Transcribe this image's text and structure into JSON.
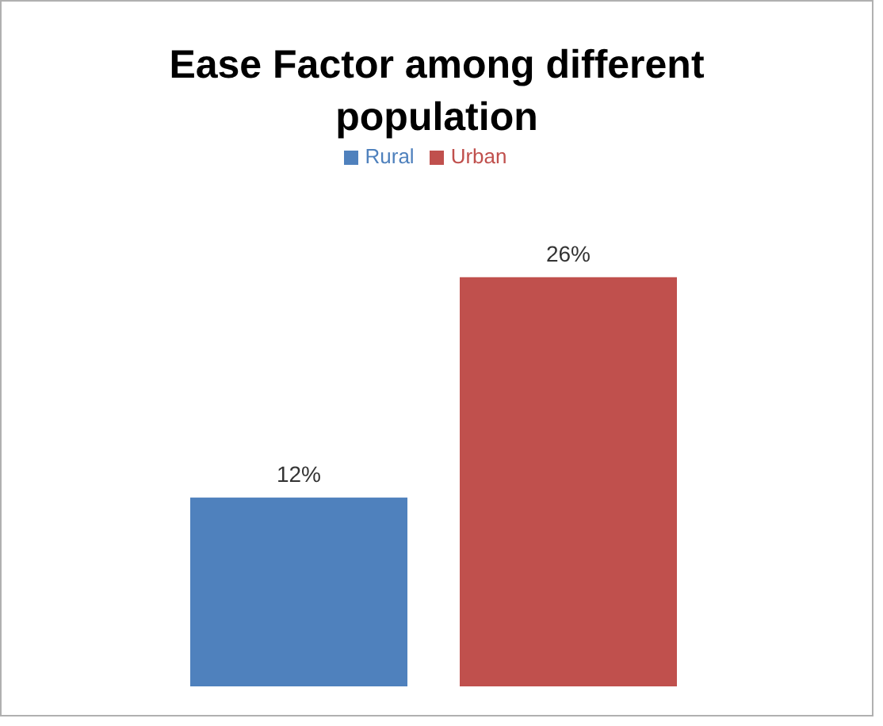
{
  "chart_data": {
    "type": "bar",
    "title": "Ease Factor among different population",
    "categories": [
      null
    ],
    "legend": "top",
    "series": [
      {
        "name": "Rural",
        "color": "#4f81bd",
        "values": [
          12
        ],
        "value_labels": [
          "12%"
        ]
      },
      {
        "name": "Urban",
        "color": "#c0504d",
        "values": [
          26
        ],
        "value_labels": [
          "26%"
        ]
      }
    ]
  }
}
